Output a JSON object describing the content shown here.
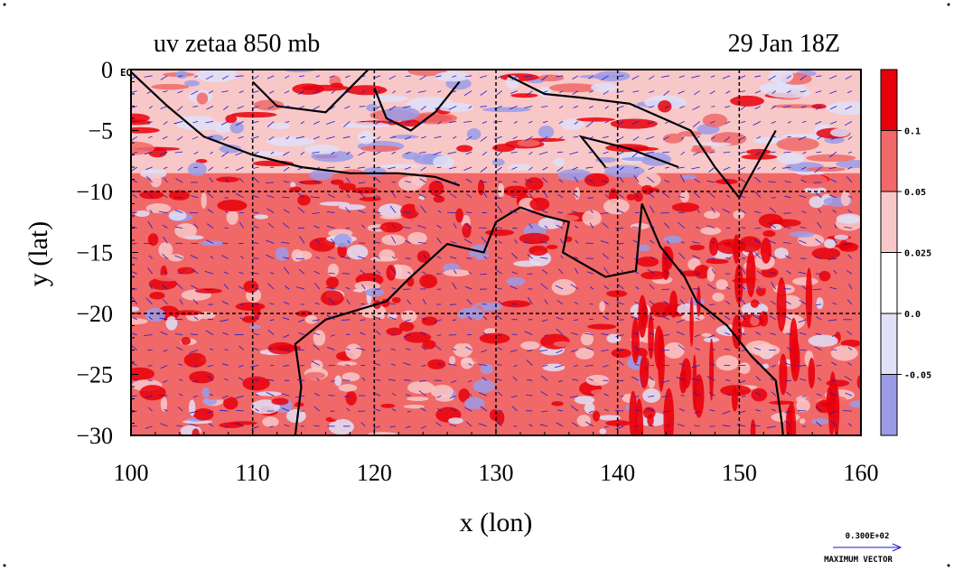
{
  "chart_data": {
    "type": "heatmap",
    "title": "uv zetaa 850 mb",
    "date_label": "29 Jan 18Z",
    "xlabel": "x (lon)",
    "ylabel": "y (lat)",
    "xlim": [
      100,
      160
    ],
    "ylim": [
      -30,
      0
    ],
    "x_ticks": [
      "100",
      "110",
      "120",
      "130",
      "140",
      "150",
      "160"
    ],
    "y_ticks": [
      "0",
      "−5",
      "−10",
      "−15",
      "−20",
      "−25",
      "−30"
    ],
    "eq_marker": "EQ",
    "grid": true,
    "colorbar": {
      "levels": [
        "0.1",
        "0.05",
        "0.025",
        "0.0",
        "-0.05"
      ],
      "colors": [
        "#e8000b",
        "#f06868",
        "#f8c8c8",
        "#ffffff",
        "#e0e0f8",
        "#9b9be8"
      ]
    },
    "vector_legend": {
      "value_label": "0.300E+02",
      "caption": "MAXIMUM VECTOR"
    },
    "colors": {
      "strong_positive": "#e8000b",
      "positive": "#f06868",
      "weak_positive": "#f8c8c8",
      "weak_negative": "#e0e0f8",
      "negative": "#9b9be8",
      "vectors": "#1a1acc",
      "coast": "#000000"
    }
  }
}
